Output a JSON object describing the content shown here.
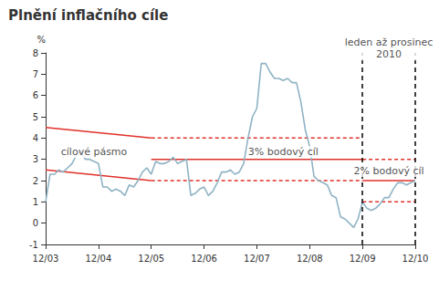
{
  "chart_data": {
    "type": "line",
    "title": "Plnění inflačního cíle",
    "y_label": "%",
    "categories": [
      "12/03",
      null,
      null,
      null,
      null,
      null,
      null,
      null,
      null,
      null,
      null,
      null,
      "12/04",
      null,
      null,
      null,
      null,
      null,
      null,
      null,
      null,
      null,
      null,
      null,
      "12/05",
      null,
      null,
      null,
      null,
      null,
      null,
      null,
      null,
      null,
      null,
      null,
      "12/06",
      null,
      null,
      null,
      null,
      null,
      null,
      null,
      null,
      null,
      null,
      null,
      "12/07",
      null,
      null,
      null,
      null,
      null,
      null,
      null,
      null,
      null,
      null,
      null,
      "12/08",
      null,
      null,
      null,
      null,
      null,
      null,
      null,
      null,
      null,
      null,
      null,
      "12/09",
      null,
      null,
      null,
      null,
      null,
      null,
      null,
      null,
      null,
      null,
      null,
      "12/10"
    ],
    "values": [
      1.0,
      2.3,
      2.3,
      2.5,
      2.4,
      2.6,
      2.8,
      3.2,
      3.4,
      3.0,
      3.0,
      2.9,
      2.8,
      1.7,
      1.7,
      1.5,
      1.6,
      1.5,
      1.3,
      1.8,
      1.7,
      2.0,
      2.4,
      2.6,
      2.3,
      2.9,
      2.8,
      2.8,
      2.9,
      3.1,
      2.8,
      2.9,
      3.0,
      1.3,
      1.4,
      1.6,
      1.7,
      1.3,
      1.5,
      1.9,
      2.4,
      2.4,
      2.5,
      2.3,
      2.4,
      2.8,
      4.0,
      5.0,
      5.4,
      7.5,
      7.5,
      7.1,
      6.8,
      6.8,
      6.7,
      6.8,
      6.6,
      6.6,
      5.7,
      4.4,
      3.6,
      2.2,
      2.0,
      1.9,
      1.8,
      1.3,
      1.2,
      0.3,
      0.2,
      0.0,
      -0.2,
      0.2,
      1.0,
      0.7,
      0.6,
      0.7,
      0.9,
      1.2,
      1.2,
      1.6,
      1.9,
      1.9,
      1.8,
      1.9,
      2.0
    ],
    "color": "#8fb3c4",
    "ylim": [
      -1,
      8
    ],
    "yticks": [
      -1,
      0,
      1,
      2,
      3,
      4,
      5,
      6,
      7,
      8
    ],
    "grid": false,
    "reference_lines": [
      {
        "x": [
          "12/03",
          "12/05"
        ],
        "y": [
          4.5,
          4.0
        ],
        "color": "#e0302a",
        "line_style": "solid"
      },
      {
        "x": [
          "12/03",
          "12/05"
        ],
        "y": [
          2.5,
          2.0
        ],
        "color": "#e0302a",
        "line_style": "solid"
      },
      {
        "x": [
          "12/05",
          "12/09"
        ],
        "y": [
          3,
          3
        ],
        "color": "#e0302a",
        "line_style": "solid"
      },
      {
        "x": [
          "12/05",
          "12/09"
        ],
        "y": [
          4,
          4
        ],
        "color": "#e0302a",
        "line_style": "dotted"
      },
      {
        "x": [
          "12/05",
          "12/09"
        ],
        "y": [
          2,
          2
        ],
        "color": "#e0302a",
        "line_style": "dotted"
      },
      {
        "x": [
          "12/09",
          "12/10"
        ],
        "y": [
          3,
          3
        ],
        "color": "#e0302a",
        "line_style": "dotted"
      },
      {
        "x": [
          "12/09",
          "12/10"
        ],
        "y": [
          2,
          2
        ],
        "color": "#e0302a",
        "line_style": "solid"
      },
      {
        "x": [
          "12/09",
          "12/10"
        ],
        "y": [
          1,
          1
        ],
        "color": "#e0302a",
        "line_style": "dotted"
      }
    ],
    "vertical_lines": [
      {
        "x": "12/09",
        "color": "#000000",
        "line_style": "dashed"
      },
      {
        "x": "12/10",
        "color": "#000000",
        "line_style": "dashed"
      }
    ],
    "annotations": [
      {
        "text": "cílové pásmo",
        "x": 11,
        "y": 3.35
      },
      {
        "text": "3% bodový cíl",
        "x": 54,
        "y": 3.35
      },
      {
        "text": "2% bodový cíl",
        "x": 78,
        "y": 2.45
      },
      {
        "text": "leden až prosinec\n2010",
        "x": 78,
        "y": 8.2
      }
    ]
  }
}
